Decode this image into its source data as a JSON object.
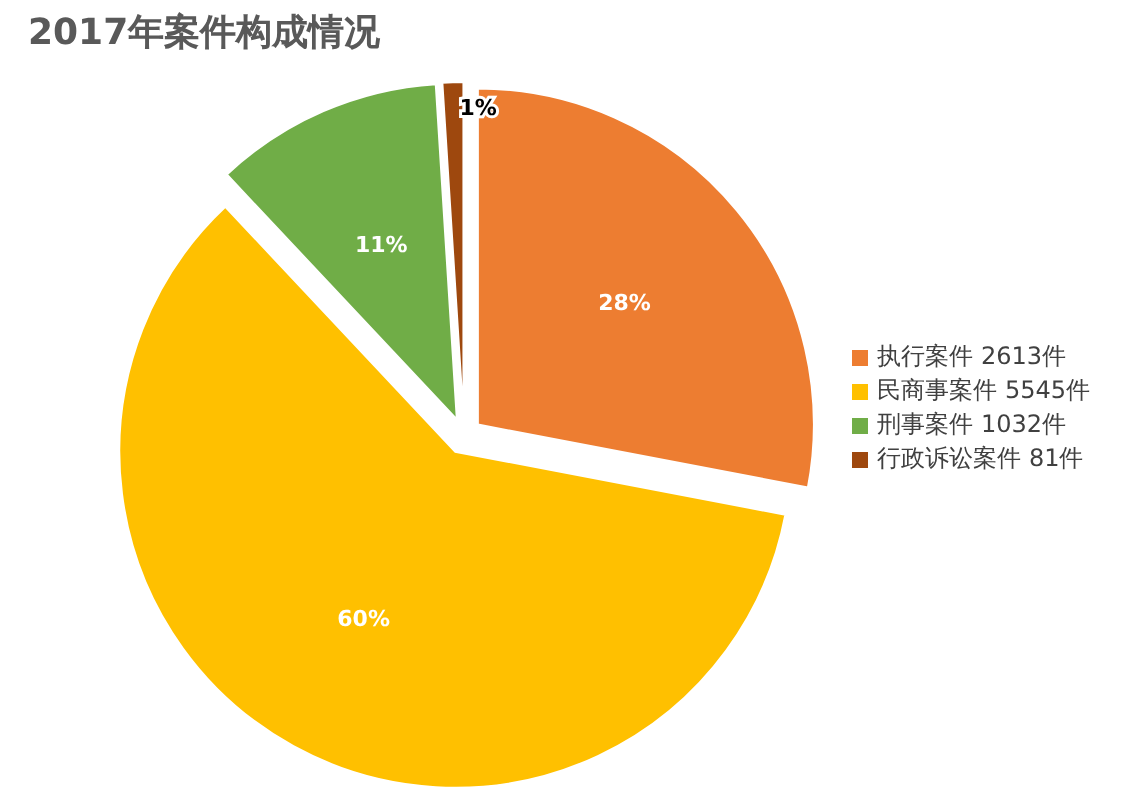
{
  "chart_data": {
    "type": "pie",
    "title": "2017年案件构成情况",
    "categories": [
      "执行案件 2613件",
      "民商事案件 5545件",
      "刑事案件 1032件",
      "行政诉讼案件 81件"
    ],
    "values": [
      28,
      60,
      11,
      1
    ],
    "value_labels": [
      "28%",
      "60%",
      "11%",
      "1%"
    ],
    "colors": [
      "#ed7d31",
      "#ffc000",
      "#70ad47",
      "#9e480e"
    ],
    "legend": "right"
  }
}
